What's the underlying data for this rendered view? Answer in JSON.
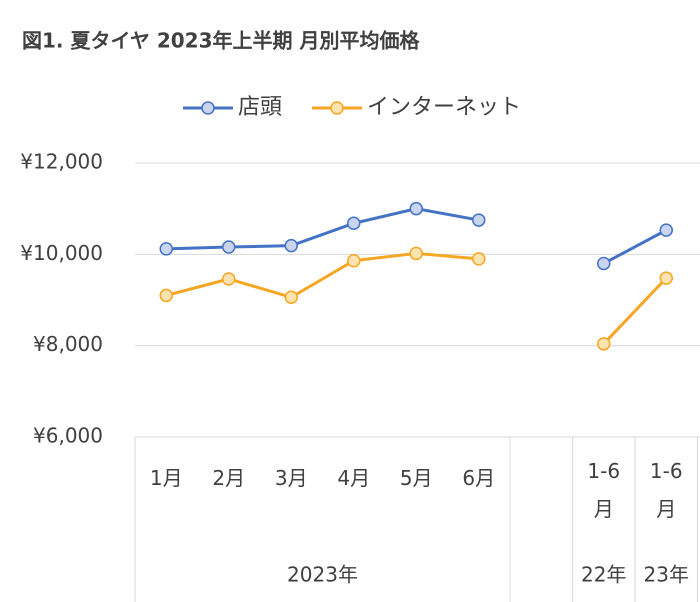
{
  "chart_data": {
    "type": "line",
    "title": "図1. 夏タイヤ 2023年上半期 月別平均価格",
    "categories": [
      "1月",
      "2月",
      "3月",
      "4月",
      "5月",
      "6月",
      null,
      "1-6月",
      "1-6月"
    ],
    "category_groups": [
      {
        "label": "2023年",
        "size": 6
      },
      {
        "label": null,
        "size": 1
      },
      {
        "label": "22年",
        "size": 1
      },
      {
        "label": "23年",
        "size": 1
      }
    ],
    "series": [
      {
        "name": "店頭",
        "color": "#4472c4",
        "values": [
          10120,
          10160,
          10190,
          10680,
          11000,
          10750,
          null,
          9800,
          10530
        ]
      },
      {
        "name": "インターネット",
        "color": "#f5a623",
        "values": [
          9100,
          9460,
          9060,
          9860,
          10020,
          9900,
          null,
          8040,
          9480
        ]
      }
    ],
    "ylim": [
      6000,
      12000
    ],
    "yticks": [
      {
        "value": 6000,
        "label": "¥6,000"
      },
      {
        "value": 8000,
        "label": "¥8,000"
      },
      {
        "value": 10000,
        "label": "¥10,000"
      },
      {
        "value": 12000,
        "label": "¥12,000"
      }
    ],
    "grid": true,
    "legend": "top"
  }
}
